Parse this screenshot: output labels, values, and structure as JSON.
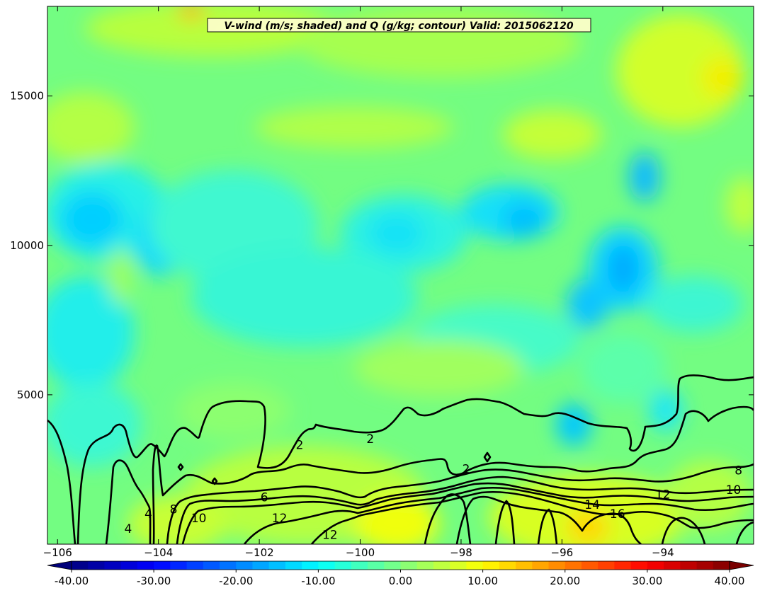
{
  "chart_data": {
    "type": "heatmap",
    "title": "V-wind (m/s; shaded) and Q (g/kg; contour) Valid: 2015062120",
    "xlim": [
      -106.2,
      -92.2
    ],
    "ylim": [
      0,
      18000
    ],
    "x_ticks": [
      -106,
      -104,
      -102,
      -100,
      -98,
      -96,
      -94
    ],
    "x_tick_labels": [
      "−106",
      "−104",
      "−102",
      "−100",
      "−98",
      "−96",
      "−94"
    ],
    "y_ticks": [
      5000,
      10000,
      15000
    ],
    "y_tick_labels": [
      "5000",
      "10000",
      "15000"
    ],
    "colorbar": {
      "min": -40,
      "max": 40,
      "extend": "both",
      "ticks": [
        -40,
        -30,
        -20,
        -10,
        0,
        10,
        20,
        30,
        40
      ],
      "tick_labels": [
        "-40.00",
        "-30.00",
        "-20.00",
        "-10.00",
        "0.00",
        "10.00",
        "20.00",
        "30.00",
        "40.00"
      ]
    },
    "contour_levels": [
      2,
      4,
      6,
      8,
      10,
      12,
      14,
      16
    ],
    "contour_labels": [
      {
        "text": "2",
        "x": -101.2,
        "y": 3300
      },
      {
        "text": "2",
        "x": -99.8,
        "y": 3500
      },
      {
        "text": "2",
        "x": -97.9,
        "y": 2500
      },
      {
        "text": "4",
        "x": -104.2,
        "y": 1000
      },
      {
        "text": "4",
        "x": -104.6,
        "y": 500
      },
      {
        "text": "6",
        "x": -101.9,
        "y": 1550
      },
      {
        "text": "8",
        "x": -103.7,
        "y": 1150
      },
      {
        "text": "8",
        "x": -92.5,
        "y": 2450
      },
      {
        "text": "10",
        "x": -103.2,
        "y": 850
      },
      {
        "text": "10",
        "x": -92.6,
        "y": 1800
      },
      {
        "text": "12",
        "x": -101.6,
        "y": 850
      },
      {
        "text": "12",
        "x": -100.6,
        "y": 300
      },
      {
        "text": "12",
        "x": -94.0,
        "y": 1650
      },
      {
        "text": "14",
        "x": -95.4,
        "y": 1300
      },
      {
        "text": "16",
        "x": -94.9,
        "y": 1000
      }
    ]
  }
}
